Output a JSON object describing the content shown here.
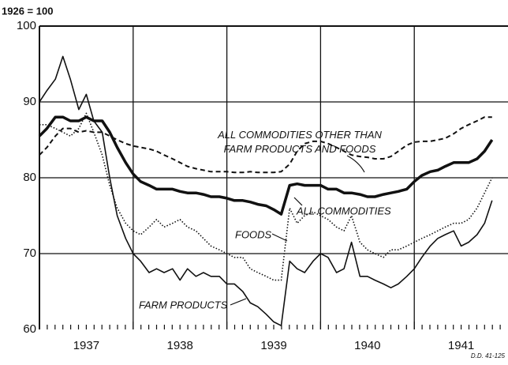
{
  "chart_data": {
    "type": "line",
    "unit_label": "1926 = 100",
    "note": "D.D. 41-125",
    "xlim": [
      1937,
      1942
    ],
    "ylim": [
      60,
      100
    ],
    "yticks": [
      60,
      70,
      80,
      90,
      100
    ],
    "xticks": [
      {
        "value": 1937,
        "label": "1937"
      },
      {
        "value": 1938,
        "label": "1938"
      },
      {
        "value": 1939,
        "label": "1939"
      },
      {
        "value": 1940,
        "label": "1940"
      },
      {
        "value": 1941,
        "label": "1941"
      }
    ],
    "grid": true,
    "x": [
      1937,
      1937.08,
      1937.17,
      1937.25,
      1937.33,
      1937.42,
      1937.5,
      1937.58,
      1937.67,
      1937.75,
      1937.83,
      1937.92,
      1938,
      1938.08,
      1938.17,
      1938.25,
      1938.33,
      1938.42,
      1938.5,
      1938.58,
      1938.67,
      1938.75,
      1938.83,
      1938.92,
      1939,
      1939.08,
      1939.17,
      1939.25,
      1939.33,
      1939.42,
      1939.5,
      1939.58,
      1939.67,
      1939.75,
      1939.83,
      1939.92,
      1940,
      1940.08,
      1940.17,
      1940.25,
      1940.33,
      1940.42,
      1940.5,
      1940.58,
      1940.67,
      1940.75,
      1940.83,
      1940.92,
      1941,
      1941.08,
      1941.17,
      1941.25,
      1941.33,
      1941.42,
      1941.5,
      1941.58,
      1941.67,
      1941.75,
      1941.83
    ],
    "series": [
      {
        "name": "ALL COMMODITIES OTHER THAN FARM PRODUCTS AND FOODS",
        "color": "#111111",
        "style": "dashed",
        "linewidth": 2,
        "values": [
          83,
          84,
          85.5,
          86.5,
          86.5,
          86,
          86.2,
          86,
          86,
          85.5,
          85,
          84.5,
          84.2,
          84,
          83.8,
          83.5,
          83,
          82.5,
          82,
          81.5,
          81.2,
          81,
          80.8,
          80.8,
          80.8,
          80.7,
          80.7,
          80.8,
          80.7,
          80.7,
          80.7,
          80.8,
          81.8,
          83.5,
          84.5,
          84.8,
          84.8,
          84.5,
          84,
          83.5,
          83,
          82.8,
          82.7,
          82.5,
          82.5,
          82.8,
          83.5,
          84.3,
          84.7,
          84.8,
          84.8,
          85,
          85.2,
          85.8,
          86.5,
          87,
          87.5,
          88,
          88
        ]
      },
      {
        "name": "ALL COMMODITIES",
        "color": "#111111",
        "style": "solid",
        "linewidth": 3.5,
        "values": [
          85.5,
          86.5,
          88,
          88,
          87.5,
          87.5,
          88,
          87.5,
          87.5,
          86,
          84,
          82,
          80.5,
          79.5,
          79,
          78.5,
          78.5,
          78.5,
          78.2,
          78,
          78,
          77.8,
          77.5,
          77.5,
          77.3,
          77,
          77,
          76.8,
          76.5,
          76.3,
          75.8,
          75.2,
          79,
          79.2,
          79,
          79,
          79,
          78.5,
          78.5,
          78,
          78,
          77.8,
          77.5,
          77.5,
          77.8,
          78,
          78.2,
          78.5,
          79.5,
          80.3,
          80.8,
          81,
          81.5,
          82,
          82,
          82,
          82.5,
          83.5,
          85
        ]
      },
      {
        "name": "FOODS",
        "color": "#111111",
        "style": "dotted",
        "linewidth": 1.6,
        "values": [
          87,
          87,
          86.5,
          86,
          85.5,
          86.5,
          88.5,
          86,
          83,
          79,
          76,
          74,
          73,
          72.5,
          73.5,
          74.5,
          73.5,
          74,
          74.5,
          73.5,
          73,
          72,
          71,
          70.5,
          70,
          69.5,
          69.5,
          68,
          67.5,
          67,
          66.5,
          66.5,
          76,
          74,
          75,
          75.5,
          75,
          74.5,
          73.5,
          73,
          75,
          71.5,
          70.5,
          70,
          69.5,
          70.5,
          70.5,
          71,
          71.5,
          72,
          72.5,
          73,
          73.5,
          74,
          74,
          74.5,
          76,
          78,
          80
        ]
      },
      {
        "name": "FARM PRODUCTS",
        "color": "#111111",
        "style": "solid",
        "linewidth": 1.6,
        "values": [
          90,
          91.5,
          93,
          96,
          93,
          89,
          91,
          87.5,
          86,
          80,
          75,
          72,
          70,
          69,
          67.5,
          68,
          67.5,
          68,
          66.5,
          68,
          67,
          67.5,
          67,
          67,
          66,
          66,
          65,
          63.5,
          63,
          62,
          61,
          60.5,
          69,
          68,
          67.5,
          69,
          70,
          69.5,
          67.5,
          68,
          71.5,
          67,
          67,
          66.5,
          66,
          65.5,
          66,
          67,
          68,
          69.5,
          71,
          72,
          72.5,
          73,
          71,
          71.5,
          72.5,
          74,
          77
        ]
      }
    ]
  }
}
